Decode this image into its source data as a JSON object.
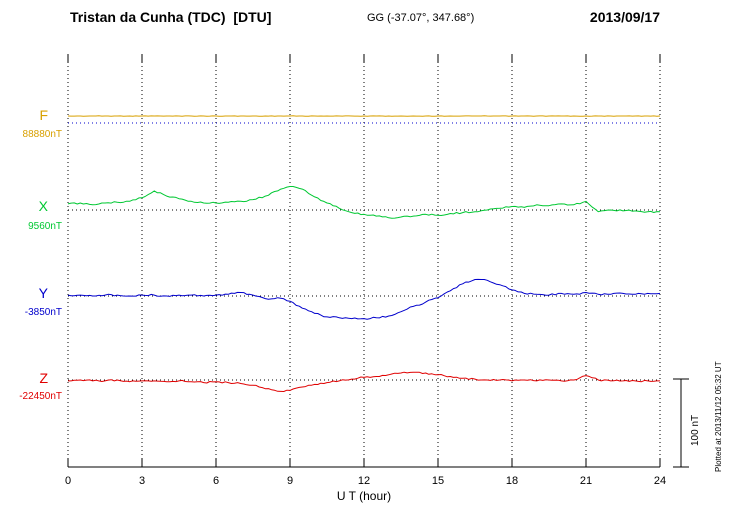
{
  "header": {
    "station_title": "Tristan da Cunha (TDC)  [DTU]",
    "coords": "GG (-37.07°, 347.68°)",
    "date": "2013/09/17"
  },
  "footer_note": "Plotted at 2013/11/12 05:32 UT",
  "chart_data": {
    "type": "line",
    "title": "Tristan da Cunha (TDC) [DTU] magnetogram 2013/09/17",
    "xlabel": "U T (hour)",
    "ylabel": "",
    "xlim": [
      0,
      24
    ],
    "x_ticks": [
      0,
      3,
      6,
      9,
      12,
      15,
      18,
      21,
      24
    ],
    "grid": "dotted vertical gridlines every 3 hours; dotted horizontal baseline per component",
    "legend_position": "left-margin component labels",
    "scale_bar": {
      "label": "100 nT",
      "nT": 100
    },
    "x_start": 0,
    "x_step_hours": 0.5,
    "series": [
      {
        "name": "F",
        "color": "#d8a000",
        "baseline_label": "88880nT",
        "baseline_nT": 88880,
        "baseline_style": "dotted-blue",
        "values": [
          88888,
          88888,
          88888,
          88888,
          88888,
          88888,
          88888,
          88888,
          88888,
          88888,
          88888,
          88888,
          88888,
          88888,
          88888,
          88888,
          88888,
          88888,
          88888,
          88888,
          88888,
          88888,
          88888,
          88888,
          88888,
          88888,
          88888,
          88888,
          88888,
          88888,
          88888,
          88888,
          88888,
          88888,
          88888,
          88888,
          88888,
          88888,
          88888,
          88888,
          88888,
          88888,
          88888,
          88888,
          88888,
          88888,
          88888,
          88888,
          88888
        ]
      },
      {
        "name": "X",
        "color": "#00c832",
        "baseline_label": "9560nT",
        "baseline_nT": 9560,
        "baseline_style": "dotted-black",
        "values": [
          9567,
          9568,
          9566,
          9568,
          9569,
          9570,
          9574,
          9582,
          9576,
          9573,
          9570,
          9568,
          9568,
          9569,
          9570,
          9572,
          9576,
          9582,
          9587,
          9584,
          9575,
          9568,
          9562,
          9557,
          9555,
          9553,
          9551,
          9552,
          9553,
          9555,
          9554,
          9556,
          9557,
          9558,
          9560,
          9562,
          9564,
          9563,
          9566,
          9565,
          9567,
          9566,
          9570,
          9558,
          9560,
          9559,
          9559,
          9558,
          9558
        ]
      },
      {
        "name": "Y",
        "color": "#0000cc",
        "baseline_label": "-3850nT",
        "baseline_nT": -3850,
        "baseline_style": "dotted-black",
        "values": [
          -3849,
          -3849,
          -3850,
          -3849,
          -3849,
          -3850,
          -3849,
          -3849,
          -3850,
          -3849,
          -3849,
          -3850,
          -3849,
          -3848,
          -3846,
          -3849,
          -3853,
          -3852,
          -3856,
          -3864,
          -3870,
          -3874,
          -3875,
          -3876,
          -3876,
          -3875,
          -3873,
          -3868,
          -3862,
          -3857,
          -3852,
          -3844,
          -3836,
          -3831,
          -3832,
          -3837,
          -3843,
          -3847,
          -3848,
          -3849,
          -3847,
          -3848,
          -3846,
          -3848,
          -3848,
          -3847,
          -3848,
          -3847,
          -3847
        ]
      },
      {
        "name": "Z",
        "color": "#e00000",
        "baseline_label": "-22450nT",
        "baseline_nT": -22450,
        "baseline_style": "dotted-black",
        "values": [
          -22451,
          -22450,
          -22451,
          -22451,
          -22450,
          -22452,
          -22451,
          -22451,
          -22452,
          -22451,
          -22452,
          -22453,
          -22452,
          -22453,
          -22454,
          -22456,
          -22460,
          -22463,
          -22462,
          -22458,
          -22455,
          -22453,
          -22451,
          -22449,
          -22447,
          -22446,
          -22444,
          -22442,
          -22441,
          -22442,
          -22444,
          -22446,
          -22448,
          -22449,
          -22450,
          -22450,
          -22451,
          -22450,
          -22451,
          -22450,
          -22451,
          -22450,
          -22445,
          -22450,
          -22451,
          -22451,
          -22451,
          -22451,
          -22451
        ]
      }
    ]
  }
}
